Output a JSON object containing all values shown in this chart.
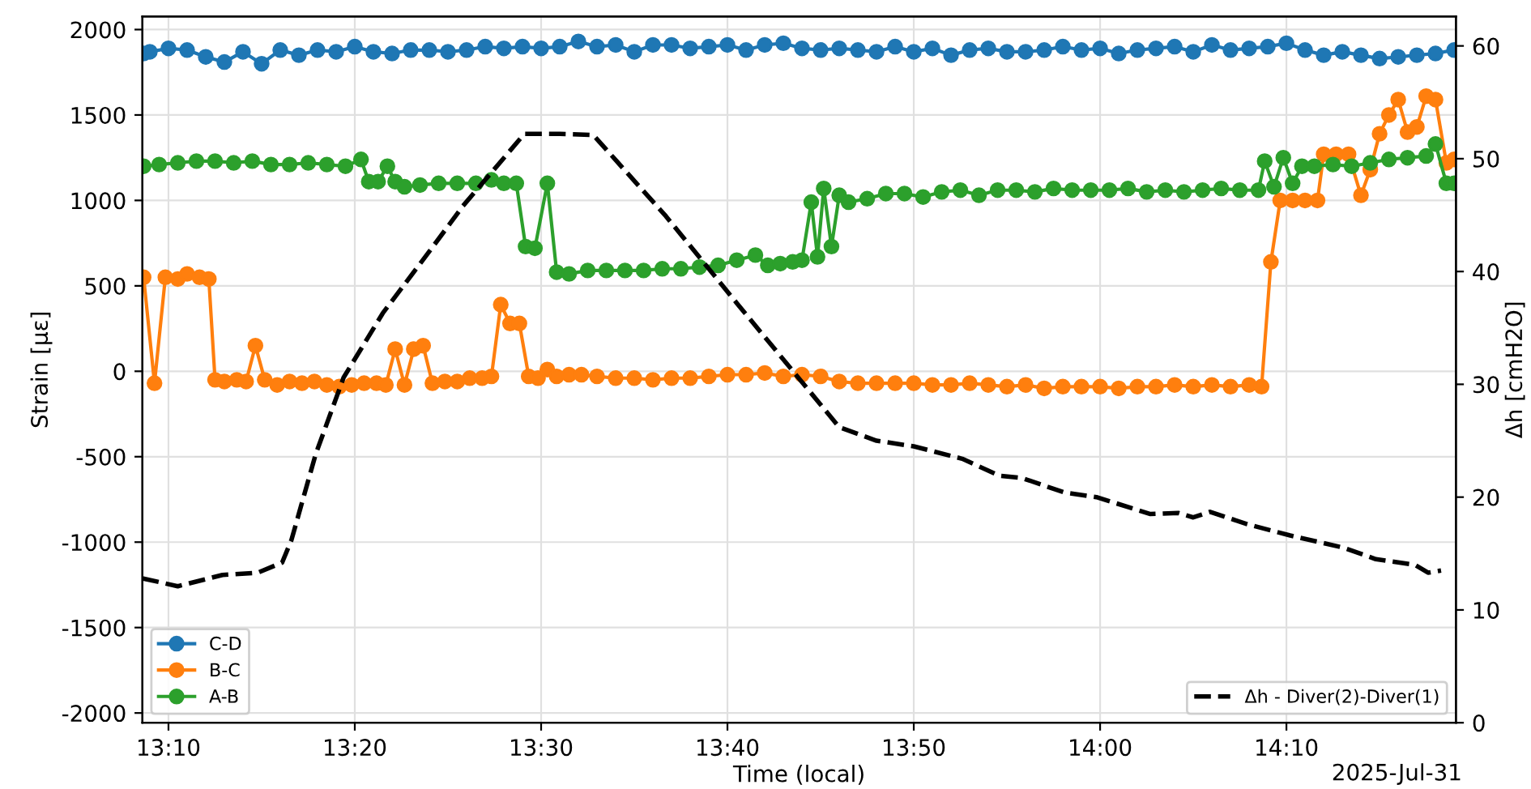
{
  "chart_data": {
    "type": "line",
    "xlabel": "Time (local)",
    "ylabel": "Strain [µε]",
    "y2label": "Δh [cmH2O]",
    "annotations": [
      "2025-Jul-31"
    ],
    "xlim": [
      "2025-07-31T13:08:36",
      "2025-07-31T14:19:06"
    ],
    "xticks": [
      {
        "value": "2025-07-31T13:10",
        "label": "13:10"
      },
      {
        "value": "2025-07-31T13:20",
        "label": "13:20"
      },
      {
        "value": "2025-07-31T13:30",
        "label": "13:30"
      },
      {
        "value": "2025-07-31T13:40",
        "label": "13:40"
      },
      {
        "value": "2025-07-31T13:50",
        "label": "13:50"
      },
      {
        "value": "2025-07-31T14:00",
        "label": "14:00"
      },
      {
        "value": "2025-07-31T14:10",
        "label": "14:10"
      }
    ],
    "ylim": [
      -2057,
      2076
    ],
    "yticks": [
      -2000,
      -1500,
      -1000,
      -500,
      0,
      500,
      1000,
      1500,
      2000
    ],
    "y2lim": [
      0,
      62.6
    ],
    "y2ticks": [
      0,
      10,
      20,
      30,
      40,
      50,
      60
    ],
    "grid": true,
    "legend": "bottom left",
    "marker": "circle",
    "series": [
      {
        "name": "C-D",
        "color": "#1f77b4",
        "x": [
          "2025-07-31T13:08:40",
          "2025-07-31T13:09",
          "2025-07-31T13:10",
          "2025-07-31T13:11",
          "2025-07-31T13:12",
          "2025-07-31T13:13",
          "2025-07-31T13:14",
          "2025-07-31T13:15",
          "2025-07-31T13:16",
          "2025-07-31T13:17",
          "2025-07-31T13:18",
          "2025-07-31T13:19",
          "2025-07-31T13:20",
          "2025-07-31T13:21",
          "2025-07-31T13:22",
          "2025-07-31T13:23",
          "2025-07-31T13:24",
          "2025-07-31T13:25",
          "2025-07-31T13:26",
          "2025-07-31T13:27",
          "2025-07-31T13:28",
          "2025-07-31T13:29",
          "2025-07-31T13:30",
          "2025-07-31T13:31",
          "2025-07-31T13:32",
          "2025-07-31T13:33",
          "2025-07-31T13:34",
          "2025-07-31T13:35",
          "2025-07-31T13:36",
          "2025-07-31T13:37",
          "2025-07-31T13:38",
          "2025-07-31T13:39",
          "2025-07-31T13:40",
          "2025-07-31T13:41",
          "2025-07-31T13:42",
          "2025-07-31T13:43",
          "2025-07-31T13:44",
          "2025-07-31T13:45",
          "2025-07-31T13:46",
          "2025-07-31T13:47",
          "2025-07-31T13:48",
          "2025-07-31T13:49",
          "2025-07-31T13:50",
          "2025-07-31T13:51",
          "2025-07-31T13:52",
          "2025-07-31T13:53",
          "2025-07-31T13:54",
          "2025-07-31T13:55",
          "2025-07-31T13:56",
          "2025-07-31T13:57",
          "2025-07-31T13:58",
          "2025-07-31T13:59",
          "2025-07-31T14:00",
          "2025-07-31T14:01",
          "2025-07-31T14:02",
          "2025-07-31T14:03",
          "2025-07-31T14:04",
          "2025-07-31T14:05",
          "2025-07-31T14:06",
          "2025-07-31T14:07",
          "2025-07-31T14:08",
          "2025-07-31T14:09",
          "2025-07-31T14:10",
          "2025-07-31T14:11",
          "2025-07-31T14:12",
          "2025-07-31T14:13",
          "2025-07-31T14:14",
          "2025-07-31T14:15",
          "2025-07-31T14:16",
          "2025-07-31T14:17",
          "2025-07-31T14:18",
          "2025-07-31T14:19"
        ],
        "values": [
          1860,
          1870,
          1890,
          1880,
          1840,
          1810,
          1870,
          1800,
          1880,
          1850,
          1880,
          1870,
          1900,
          1870,
          1860,
          1880,
          1880,
          1870,
          1880,
          1900,
          1890,
          1900,
          1890,
          1900,
          1930,
          1900,
          1910,
          1870,
          1910,
          1910,
          1890,
          1900,
          1910,
          1880,
          1910,
          1920,
          1890,
          1880,
          1890,
          1880,
          1870,
          1900,
          1870,
          1890,
          1850,
          1880,
          1890,
          1870,
          1870,
          1880,
          1900,
          1880,
          1890,
          1860,
          1880,
          1890,
          1900,
          1870,
          1910,
          1880,
          1890,
          1900,
          1920,
          1880,
          1850,
          1870,
          1850,
          1830,
          1840,
          1850,
          1860,
          1880
        ]
      },
      {
        "name": "B-C",
        "color": "#ff7f0e",
        "x": [
          "2025-07-31T13:08:40",
          "2025-07-31T13:09:15",
          "2025-07-31T13:09:50",
          "2025-07-31T13:10:30",
          "2025-07-31T13:11:00",
          "2025-07-31T13:11:40",
          "2025-07-31T13:12:10",
          "2025-07-31T13:12:30",
          "2025-07-31T13:13:00",
          "2025-07-31T13:13:40",
          "2025-07-31T13:14:10",
          "2025-07-31T13:14:40",
          "2025-07-31T13:15:10",
          "2025-07-31T13:15:50",
          "2025-07-31T13:16:30",
          "2025-07-31T13:17:10",
          "2025-07-31T13:17:50",
          "2025-07-31T13:18:30",
          "2025-07-31T13:19:10",
          "2025-07-31T13:19:50",
          "2025-07-31T13:20:30",
          "2025-07-31T13:21:10",
          "2025-07-31T13:21:40",
          "2025-07-31T13:22:10",
          "2025-07-31T13:22:40",
          "2025-07-31T13:23:10",
          "2025-07-31T13:23:40",
          "2025-07-31T13:24:10",
          "2025-07-31T13:24:50",
          "2025-07-31T13:25:30",
          "2025-07-31T13:26:10",
          "2025-07-31T13:26:50",
          "2025-07-31T13:27:20",
          "2025-07-31T13:27:50",
          "2025-07-31T13:28:20",
          "2025-07-31T13:28:50",
          "2025-07-31T13:29:20",
          "2025-07-31T13:29:50",
          "2025-07-31T13:30:20",
          "2025-07-31T13:30:50",
          "2025-07-31T13:31:30",
          "2025-07-31T13:32:10",
          "2025-07-31T13:33",
          "2025-07-31T13:34",
          "2025-07-31T13:35",
          "2025-07-31T13:36",
          "2025-07-31T13:37",
          "2025-07-31T13:38",
          "2025-07-31T13:39",
          "2025-07-31T13:40",
          "2025-07-31T13:41",
          "2025-07-31T13:42",
          "2025-07-31T13:43",
          "2025-07-31T13:44",
          "2025-07-31T13:45",
          "2025-07-31T13:46",
          "2025-07-31T13:47",
          "2025-07-31T13:48",
          "2025-07-31T13:49",
          "2025-07-31T13:50",
          "2025-07-31T13:51",
          "2025-07-31T13:52",
          "2025-07-31T13:53",
          "2025-07-31T13:54",
          "2025-07-31T13:55",
          "2025-07-31T13:56",
          "2025-07-31T13:57",
          "2025-07-31T13:58",
          "2025-07-31T13:59",
          "2025-07-31T14:00",
          "2025-07-31T14:01",
          "2025-07-31T14:02",
          "2025-07-31T14:03",
          "2025-07-31T14:04",
          "2025-07-31T14:05",
          "2025-07-31T14:06",
          "2025-07-31T14:07",
          "2025-07-31T14:08",
          "2025-07-31T14:08:40",
          "2025-07-31T14:09:10",
          "2025-07-31T14:09:40",
          "2025-07-31T14:10:20",
          "2025-07-31T14:11:00",
          "2025-07-31T14:11:40",
          "2025-07-31T14:12:00",
          "2025-07-31T14:12:40",
          "2025-07-31T14:13:20",
          "2025-07-31T14:14:00",
          "2025-07-31T14:14:30",
          "2025-07-31T14:15:00",
          "2025-07-31T14:15:30",
          "2025-07-31T14:16:00",
          "2025-07-31T14:16:30",
          "2025-07-31T14:17:00",
          "2025-07-31T14:17:30",
          "2025-07-31T14:18:00",
          "2025-07-31T14:18:35",
          "2025-07-31T14:19:00"
        ],
        "values": [
          550,
          -70,
          550,
          540,
          570,
          550,
          540,
          -50,
          -60,
          -50,
          -60,
          150,
          -50,
          -80,
          -60,
          -70,
          -60,
          -80,
          -90,
          -80,
          -70,
          -70,
          -80,
          130,
          -80,
          130,
          150,
          -70,
          -60,
          -60,
          -40,
          -40,
          -30,
          390,
          280,
          280,
          -30,
          -40,
          10,
          -30,
          -20,
          -20,
          -30,
          -40,
          -40,
          -50,
          -40,
          -40,
          -30,
          -20,
          -20,
          -10,
          -30,
          -20,
          -30,
          -60,
          -70,
          -70,
          -70,
          -70,
          -80,
          -80,
          -70,
          -80,
          -90,
          -80,
          -100,
          -90,
          -90,
          -90,
          -100,
          -90,
          -90,
          -80,
          -90,
          -80,
          -90,
          -80,
          -90,
          640,
          1000,
          1000,
          1000,
          1000,
          1270,
          1270,
          1270,
          1030,
          1180,
          1390,
          1500,
          1590,
          1400,
          1430,
          1610,
          1590,
          1220,
          1240
        ]
      },
      {
        "name": "A-B",
        "color": "#2ca02c",
        "x": [
          "2025-07-31T13:08:40",
          "2025-07-31T13:09:30",
          "2025-07-31T13:10:30",
          "2025-07-31T13:11:30",
          "2025-07-31T13:12:30",
          "2025-07-31T13:13:30",
          "2025-07-31T13:14:30",
          "2025-07-31T13:15:30",
          "2025-07-31T13:16:30",
          "2025-07-31T13:17:30",
          "2025-07-31T13:18:30",
          "2025-07-31T13:19:30",
          "2025-07-31T13:20:20",
          "2025-07-31T13:20:45",
          "2025-07-31T13:21:15",
          "2025-07-31T13:21:45",
          "2025-07-31T13:22:10",
          "2025-07-31T13:22:40",
          "2025-07-31T13:23:30",
          "2025-07-31T13:24:30",
          "2025-07-31T13:25:30",
          "2025-07-31T13:26:30",
          "2025-07-31T13:27:20",
          "2025-07-31T13:28:00",
          "2025-07-31T13:28:40",
          "2025-07-31T13:29:10",
          "2025-07-31T13:29:40",
          "2025-07-31T13:30:20",
          "2025-07-31T13:30:50",
          "2025-07-31T13:31:30",
          "2025-07-31T13:32:30",
          "2025-07-31T13:33:30",
          "2025-07-31T13:34:30",
          "2025-07-31T13:35:30",
          "2025-07-31T13:36:30",
          "2025-07-31T13:37:30",
          "2025-07-31T13:38:30",
          "2025-07-31T13:39:30",
          "2025-07-31T13:40:30",
          "2025-07-31T13:41:30",
          "2025-07-31T13:42:10",
          "2025-07-31T13:42:50",
          "2025-07-31T13:43:30",
          "2025-07-31T13:44:00",
          "2025-07-31T13:44:30",
          "2025-07-31T13:44:50",
          "2025-07-31T13:45:10",
          "2025-07-31T13:45:35",
          "2025-07-31T13:46:00",
          "2025-07-31T13:46:30",
          "2025-07-31T13:47:30",
          "2025-07-31T13:48:30",
          "2025-07-31T13:49:30",
          "2025-07-31T13:50:30",
          "2025-07-31T13:51:30",
          "2025-07-31T13:52:30",
          "2025-07-31T13:53:30",
          "2025-07-31T13:54:30",
          "2025-07-31T13:55:30",
          "2025-07-31T13:56:30",
          "2025-07-31T13:57:30",
          "2025-07-31T13:58:30",
          "2025-07-31T13:59:30",
          "2025-07-31T14:00:30",
          "2025-07-31T14:01:30",
          "2025-07-31T14:02:30",
          "2025-07-31T14:03:30",
          "2025-07-31T14:04:30",
          "2025-07-31T14:05:30",
          "2025-07-31T14:06:30",
          "2025-07-31T14:07:30",
          "2025-07-31T14:08:30",
          "2025-07-31T14:08:50",
          "2025-07-31T14:09:20",
          "2025-07-31T14:09:50",
          "2025-07-31T14:10:20",
          "2025-07-31T14:10:50",
          "2025-07-31T14:11:30",
          "2025-07-31T14:12:30",
          "2025-07-31T14:13:30",
          "2025-07-31T14:14:30",
          "2025-07-31T14:15:30",
          "2025-07-31T14:16:30",
          "2025-07-31T14:17:30",
          "2025-07-31T14:18:00",
          "2025-07-31T14:18:35",
          "2025-07-31T14:19:00"
        ],
        "values": [
          1200,
          1210,
          1220,
          1230,
          1230,
          1220,
          1230,
          1210,
          1210,
          1220,
          1210,
          1200,
          1240,
          1110,
          1110,
          1200,
          1110,
          1080,
          1090,
          1100,
          1100,
          1100,
          1120,
          1100,
          1100,
          730,
          720,
          1100,
          580,
          570,
          590,
          590,
          590,
          590,
          600,
          600,
          610,
          620,
          650,
          680,
          620,
          630,
          640,
          650,
          990,
          670,
          1070,
          730,
          1030,
          990,
          1010,
          1040,
          1040,
          1020,
          1050,
          1060,
          1030,
          1060,
          1060,
          1050,
          1070,
          1060,
          1060,
          1060,
          1070,
          1050,
          1060,
          1050,
          1060,
          1070,
          1060,
          1060,
          1230,
          1080,
          1250,
          1100,
          1200,
          1200,
          1210,
          1200,
          1220,
          1240,
          1250,
          1260,
          1330,
          1100,
          1100
        ]
      },
      {
        "name": "Δh - Diver(2)-Diver(1)",
        "color": "#000000",
        "axis": "y2",
        "marker": "none",
        "line_style": "dashed",
        "x": [
          "2025-07-31T13:08:36",
          "2025-07-31T13:10:30",
          "2025-07-31T13:12:54",
          "2025-07-31T13:14:48",
          "2025-07-31T13:16:06",
          "2025-07-31T13:16:36",
          "2025-07-31T13:17:54",
          "2025-07-31T13:19:24",
          "2025-07-31T13:21:30",
          "2025-07-31T13:24:06",
          "2025-07-31T13:25:48",
          "2025-07-31T13:29:06",
          "2025-07-31T13:31:00",
          "2025-07-31T13:32:48",
          "2025-07-31T13:36:42",
          "2025-07-31T13:40:30",
          "2025-07-31T13:44:18",
          "2025-07-31T13:46:00",
          "2025-07-31T13:48:00",
          "2025-07-31T13:50:00",
          "2025-07-31T13:52:36",
          "2025-07-31T13:54:36",
          "2025-07-31T13:55:48",
          "2025-07-31T13:58:06",
          "2025-07-31T13:59:48",
          "2025-07-31T14:02:42",
          "2025-07-31T14:04:12",
          "2025-07-31T14:05:00",
          "2025-07-31T14:05:54",
          "2025-07-31T14:07:54",
          "2025-07-31T14:10:12",
          "2025-07-31T14:13:06",
          "2025-07-31T14:14:48",
          "2025-07-31T14:16:54",
          "2025-07-31T14:17:36",
          "2025-07-31T14:18:18"
        ],
        "values": [
          12.8,
          12.1,
          13.1,
          13.3,
          14.2,
          16.2,
          23.8,
          30.6,
          36.3,
          42.0,
          45.8,
          52.2,
          52.2,
          52.1,
          44.9,
          37.2,
          29.6,
          26.2,
          25.0,
          24.5,
          23.4,
          21.9,
          21.7,
          20.4,
          20.0,
          18.5,
          18.6,
          18.2,
          18.7,
          17.6,
          16.6,
          15.5,
          14.5,
          14.0,
          13.3,
          13.5
        ]
      }
    ]
  }
}
